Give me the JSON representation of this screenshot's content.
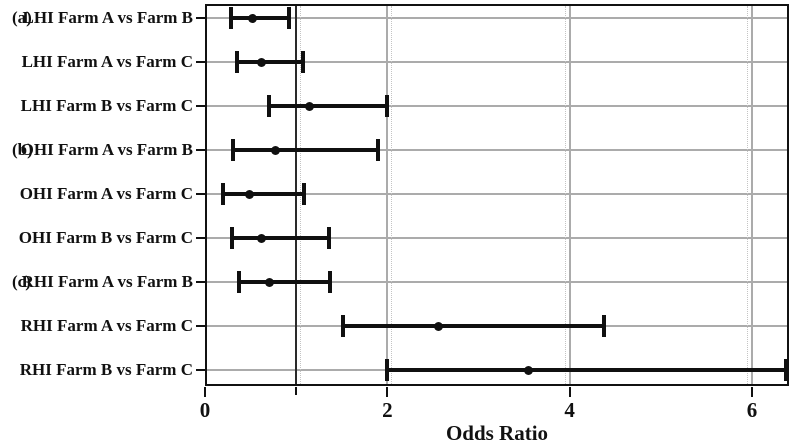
{
  "chart_data": {
    "type": "scatter",
    "subtype": "forest-plot-odds-ratio",
    "title": "",
    "xlabel": "Odds Ratio",
    "ylabel": "",
    "xlim": [
      0,
      6.4
    ],
    "x_ticks": [
      0,
      2,
      4,
      6
    ],
    "x_tick_labels": [
      "0",
      "2",
      "4",
      "6"
    ],
    "x_minor_ticks": [
      1
    ],
    "reference_line_x": 1,
    "grid": "on",
    "legend": "none",
    "rows": [
      {
        "group": "(a)",
        "label": "LHI Farm A vs Farm B",
        "or": 0.52,
        "ci_low": 0.29,
        "ci_high": 0.92
      },
      {
        "group": "",
        "label": "LHI Farm A vs Farm C",
        "or": 0.62,
        "ci_low": 0.35,
        "ci_high": 1.08
      },
      {
        "group": "",
        "label": "LHI Farm B vs Farm C",
        "or": 1.15,
        "ci_low": 0.7,
        "ci_high": 2.0
      },
      {
        "group": "(b)",
        "label": "OHI Farm A vs Farm B",
        "or": 0.77,
        "ci_low": 0.31,
        "ci_high": 1.9
      },
      {
        "group": "",
        "label": "OHI Farm A vs Farm C",
        "or": 0.49,
        "ci_low": 0.2,
        "ci_high": 1.09
      },
      {
        "group": "",
        "label": "OHI Farm B vs Farm C",
        "or": 0.62,
        "ci_low": 0.3,
        "ci_high": 1.36
      },
      {
        "group": "(c)",
        "label": "RHI Farm A vs Farm B",
        "or": 0.71,
        "ci_low": 0.37,
        "ci_high": 1.37
      },
      {
        "group": "",
        "label": "RHI Farm A vs Farm C",
        "or": 2.56,
        "ci_low": 1.51,
        "ci_high": 4.38
      },
      {
        "group": "",
        "label": "RHI Farm B vs Farm C",
        "or": 3.55,
        "ci_low": 2.0,
        "ci_high": 6.37
      }
    ],
    "colors": {
      "marker": "#101010",
      "error_bar": "#101010",
      "grid_line": "#ababab",
      "reference_line": "#2a2a2a",
      "frame": "#111111",
      "text": "#111111",
      "background": "#ffffff"
    }
  }
}
